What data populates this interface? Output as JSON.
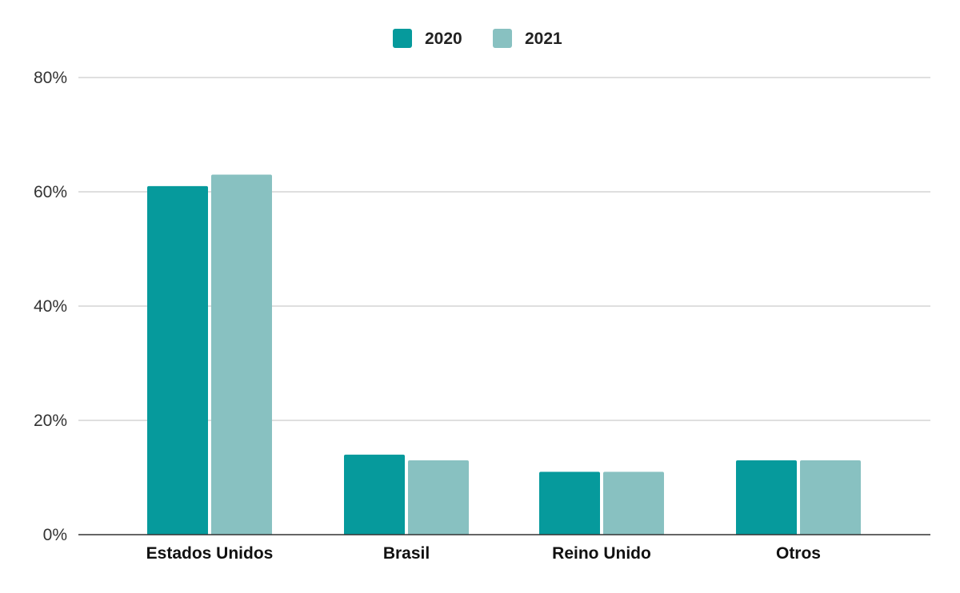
{
  "chart_data": {
    "type": "bar",
    "title": "",
    "xlabel": "",
    "ylabel": "",
    "categories": [
      "Estados Unidos",
      "Brasil",
      "Reino Unido",
      "Otros"
    ],
    "series": [
      {
        "name": "2020",
        "color": "#069a9c",
        "values": [
          61,
          14,
          11,
          13
        ]
      },
      {
        "name": "2021",
        "color": "#88c1c1",
        "values": [
          63,
          13,
          11,
          13
        ]
      }
    ],
    "ylim": [
      0,
      80
    ],
    "yticks": [
      0,
      20,
      40,
      60,
      80
    ],
    "ytick_labels": [
      "0%",
      "20%",
      "40%",
      "60%",
      "80%"
    ],
    "grid": true,
    "legend_position": "top-center",
    "gridline_color": "#cccccc",
    "axis_color": "#333333"
  }
}
